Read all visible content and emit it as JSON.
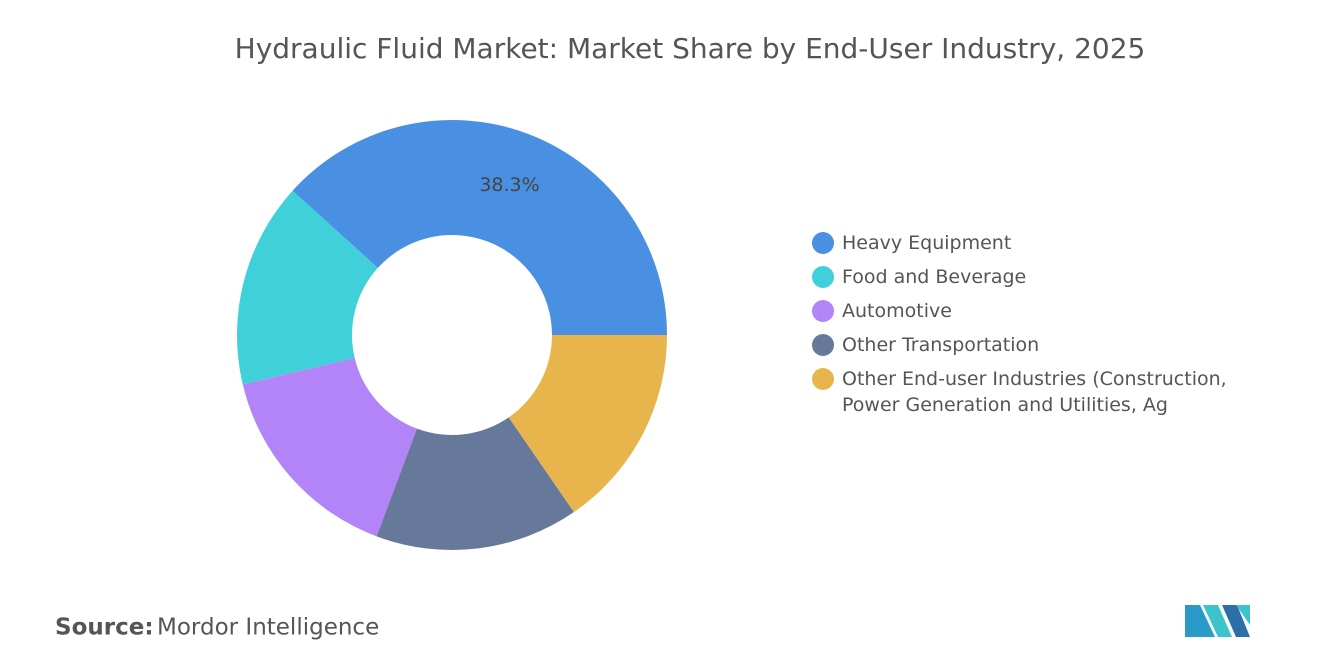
{
  "chart_data": {
    "type": "donut",
    "title": "Hydraulic Fluid Market: Market Share by End-User Industry, 2025",
    "categories": [
      "Heavy Equipment",
      "Food and Beverage",
      "Automotive",
      "Other Transportation",
      "Other End-user Industries (Construction, Power Generation and Utilities, Ag"
    ],
    "values": [
      38.3,
      15.4,
      15.6,
      15.3,
      15.4
    ],
    "value_labels": [
      "38.3%",
      null,
      null,
      null,
      null
    ],
    "colors": [
      "#4a90e2",
      "#3fd0d9",
      "#b284f8",
      "#66799b",
      "#e8b54c"
    ]
  },
  "source": {
    "label": "Source:",
    "text": "Mordor Intelligence"
  }
}
